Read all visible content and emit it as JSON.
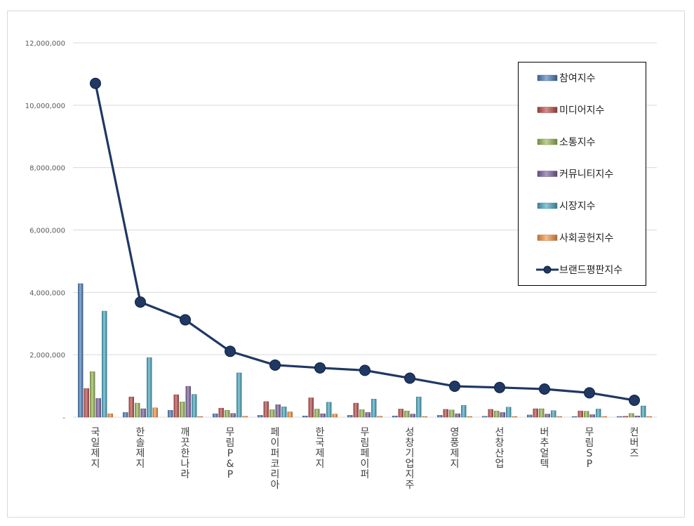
{
  "chart_data": {
    "type": "bar",
    "categories": [
      "국일제지",
      "한솔제지",
      "깨끗한나라",
      "무림P&P",
      "페이퍼코리아",
      "한국제지",
      "무림페이퍼",
      "성창기업지주",
      "영풍제지",
      "선창산업",
      "버추얼텍",
      "무림SP",
      "컨버즈"
    ],
    "series": [
      {
        "name": "참여지수",
        "kind": "bar",
        "color": "#4f81bd",
        "values": [
          4280000,
          150000,
          220000,
          110000,
          60000,
          40000,
          60000,
          40000,
          60000,
          30000,
          70000,
          20000,
          20000
        ]
      },
      {
        "name": "미디어지수",
        "kind": "bar",
        "color": "#c0504d",
        "values": [
          920000,
          650000,
          720000,
          290000,
          500000,
          620000,
          450000,
          260000,
          250000,
          250000,
          270000,
          200000,
          30000
        ]
      },
      {
        "name": "소통지수",
        "kind": "bar",
        "color": "#9bbb59",
        "values": [
          1460000,
          450000,
          490000,
          220000,
          240000,
          260000,
          240000,
          200000,
          230000,
          200000,
          270000,
          190000,
          120000
        ]
      },
      {
        "name": "커뮤니티지수",
        "kind": "bar",
        "color": "#8064a2",
        "values": [
          600000,
          270000,
          990000,
          120000,
          400000,
          110000,
          150000,
          100000,
          110000,
          150000,
          100000,
          80000,
          40000
        ]
      },
      {
        "name": "시장지수",
        "kind": "bar",
        "color": "#4bacc6",
        "values": [
          3400000,
          1910000,
          730000,
          1420000,
          330000,
          480000,
          580000,
          650000,
          380000,
          320000,
          210000,
          260000,
          360000
        ]
      },
      {
        "name": "사회공헌지수",
        "kind": "bar",
        "color": "#f79646",
        "values": [
          110000,
          300000,
          10000,
          30000,
          170000,
          100000,
          30000,
          20000,
          20000,
          20000,
          20000,
          20000,
          10000
        ]
      },
      {
        "name": "브랜드평판지수",
        "kind": "line",
        "color": "#1f3864",
        "values": [
          10700000,
          3690000,
          3120000,
          2110000,
          1670000,
          1580000,
          1500000,
          1250000,
          990000,
          950000,
          900000,
          780000,
          540000
        ]
      }
    ],
    "yticks": [
      "12,000,000",
      "10,000,000",
      "8,000,000",
      "6,000,000",
      "4,000,000",
      "2,000,000",
      "-"
    ],
    "ylim": [
      0,
      12000000
    ],
    "grid": true,
    "legend_position": "right"
  }
}
